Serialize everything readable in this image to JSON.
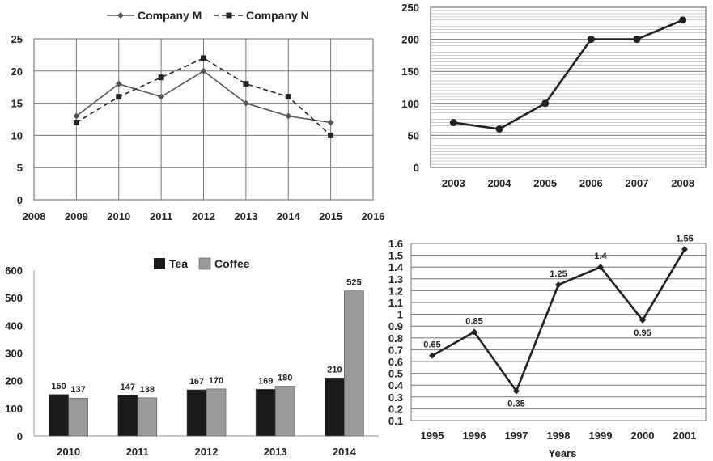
{
  "chart_data": [
    {
      "type": "line",
      "x": [
        2009,
        2010,
        2011,
        2012,
        2013,
        2014,
        2015
      ],
      "xticks": [
        2008,
        2009,
        2010,
        2011,
        2012,
        2013,
        2014,
        2015,
        2016
      ],
      "xlim": [
        2008,
        2016
      ],
      "ylim": [
        0,
        25
      ],
      "yticks": [
        0,
        5,
        10,
        15,
        20,
        25
      ],
      "grid": true,
      "legend": "top-center",
      "series": [
        {
          "name": "Company M",
          "values": [
            13,
            18,
            16,
            20,
            15,
            13,
            12
          ],
          "color": "#555555",
          "marker": "diamond",
          "dash": "solid"
        },
        {
          "name": "Company N",
          "values": [
            12,
            16,
            19,
            22,
            18,
            16,
            10
          ],
          "color": "#222222",
          "marker": "square",
          "dash": "dashed"
        }
      ]
    },
    {
      "type": "line",
      "categories": [
        "2003",
        "2004",
        "2005",
        "2006",
        "2007",
        "2008"
      ],
      "ylim": [
        0,
        250
      ],
      "yticks": [
        0,
        50,
        100,
        150,
        200,
        250
      ],
      "grid": true,
      "series": [
        {
          "values": [
            70,
            60,
            100,
            200,
            200,
            230
          ],
          "color": "#222222",
          "marker": "circle"
        }
      ]
    },
    {
      "type": "bar",
      "categories": [
        "2010",
        "2011",
        "2012",
        "2013",
        "2014"
      ],
      "ylim": [
        0,
        600
      ],
      "yticks": [
        0,
        100,
        200,
        300,
        400,
        500,
        600
      ],
      "legend": "top-center",
      "series": [
        {
          "name": "Tea",
          "values": [
            150,
            147,
            167,
            169,
            210
          ],
          "labels": [
            "150",
            "147",
            "167",
            "169",
            "210"
          ],
          "color": "#1a1a1a"
        },
        {
          "name": "Coffee",
          "values": [
            137,
            138,
            170,
            180,
            525
          ],
          "labels": [
            "137",
            "138",
            "170",
            "180",
            "525"
          ],
          "color": "#999999"
        }
      ]
    },
    {
      "type": "line",
      "categories": [
        "1995",
        "1996",
        "1997",
        "1998",
        "1999",
        "2000",
        "2001"
      ],
      "xlabel": "Years",
      "ylim": [
        0.1,
        1.6
      ],
      "yticks": [
        "0.1",
        "0.2",
        "0.3",
        "0.4",
        "0.5",
        "0.6",
        "0.7",
        "0.8",
        "0.9",
        "1",
        "1.1",
        "1.2",
        "1.3",
        "1.4",
        "1.5",
        "1.6"
      ],
      "grid": true,
      "series": [
        {
          "values": [
            0.65,
            0.85,
            0.35,
            1.25,
            1.4,
            0.95,
            1.55
          ],
          "labels": [
            "0.65",
            "0.85",
            "0.35",
            "1.25",
            "1.4",
            "0.95",
            "1.55"
          ],
          "color": "#222222",
          "marker": "diamond"
        }
      ]
    }
  ]
}
